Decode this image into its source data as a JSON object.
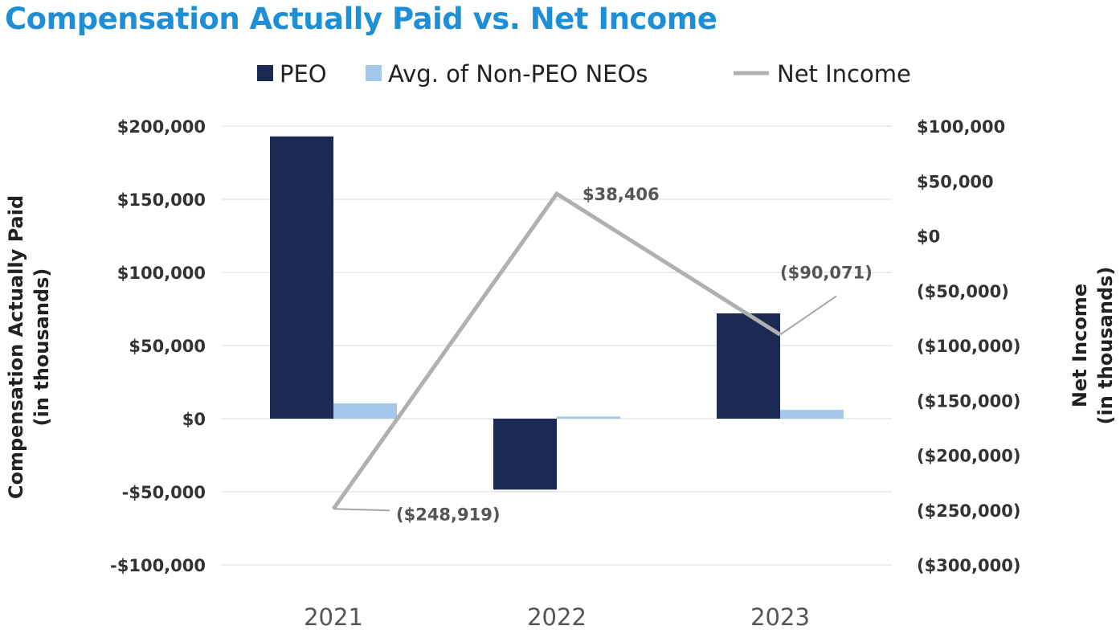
{
  "chart_data": {
    "type": "bar",
    "title": "Compensation Actually Paid vs. Net Income",
    "categories": [
      "2021",
      "2022",
      "2023"
    ],
    "series": [
      {
        "name": "PEO",
        "type": "bar",
        "axis": "left",
        "color": "#1b2a52",
        "values": [
          193000,
          -48500,
          72000
        ]
      },
      {
        "name": "Avg. of Non-PEO NEOs",
        "type": "bar",
        "axis": "left",
        "color": "#a3c8ea",
        "values": [
          10500,
          1500,
          6000
        ]
      },
      {
        "name": "Net Income",
        "type": "line",
        "axis": "right",
        "color": "#b0b0b0",
        "values": [
          -248919,
          38406,
          -90071
        ],
        "labels": [
          "($248,919)",
          "$38,406",
          "($90,071)"
        ]
      }
    ],
    "left_axis": {
      "title_line1": "Compensation Actually Paid",
      "title_line2": "(in thousands)",
      "ylim": [
        -100000,
        200000
      ],
      "ticks": [
        200000,
        150000,
        100000,
        50000,
        0,
        -50000,
        -100000
      ],
      "tick_labels": [
        "$200,000",
        "$150,000",
        "$100,000",
        "$50,000",
        "$0",
        "-$50,000",
        "-$100,000"
      ]
    },
    "right_axis": {
      "title_line1": "Net Income",
      "title_line2": "(in thousands)",
      "ylim": [
        -300000,
        100000
      ],
      "ticks": [
        100000,
        50000,
        0,
        -50000,
        -100000,
        -150000,
        -200000,
        -250000,
        -300000
      ],
      "tick_labels": [
        "$100,000",
        "$50,000",
        "$0",
        "($50,000)",
        "($100,000)",
        "($150,000)",
        "($200,000)",
        "($250,000)",
        "($300,000)"
      ]
    },
    "grid": true,
    "legend_position": "top-center",
    "title_color": "#1e8fd6"
  }
}
